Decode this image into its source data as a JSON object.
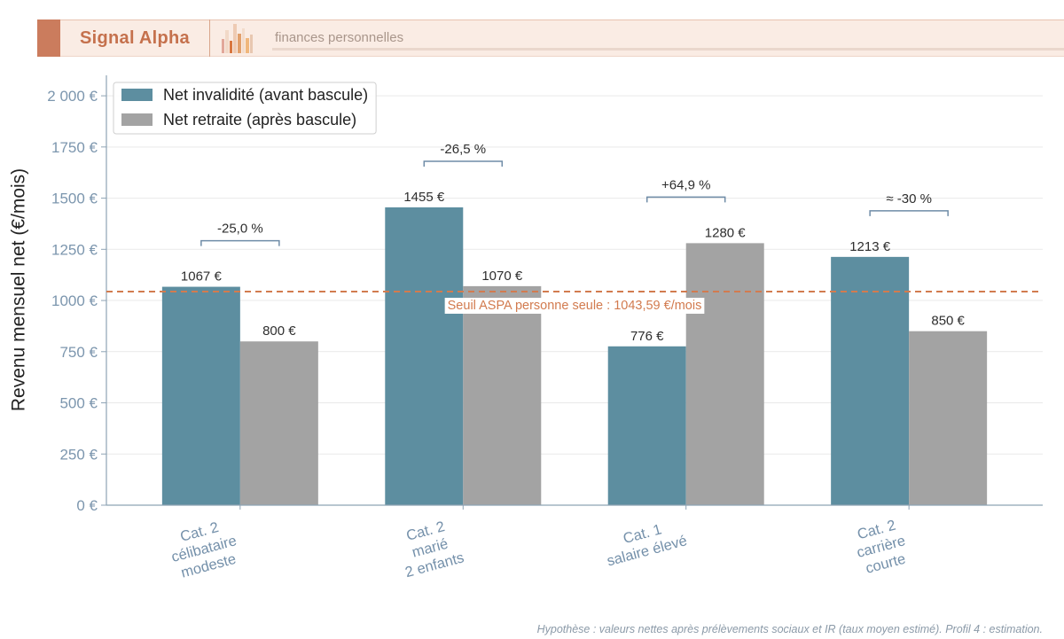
{
  "header": {
    "brand": "Signal Alpha",
    "tagline": "finances personnelles",
    "logo_icon": "bar-chart-logo-icon"
  },
  "colors": {
    "accent": "#cb7c5d",
    "brand_text": "#c5714d",
    "header_band": "#faece4",
    "axis": "#8ea3b4",
    "tick_text": "#7c96ae"
  },
  "chart_data": {
    "type": "bar",
    "title": "",
    "xlabel": "",
    "ylabel": "Revenu mensuel net (€/mois)",
    "ylim": [
      0,
      2100
    ],
    "yticks": [
      0,
      250,
      500,
      750,
      1000,
      1250,
      1500,
      1750,
      2000
    ],
    "ytick_labels": [
      "0 €",
      "250 €",
      "500 €",
      "750 €",
      "1000 €",
      "1250 €",
      "1500 €",
      "1750 €",
      "2 000 €"
    ],
    "grid": true,
    "legend_position": "top-left",
    "categories": [
      [
        "Cat. 2",
        "célibataire",
        "modeste"
      ],
      [
        "Cat. 2",
        "marié",
        "2 enfants"
      ],
      [
        "Cat. 1",
        "salaire élevé"
      ],
      [
        "Cat. 2",
        "carrière",
        "courte"
      ]
    ],
    "series": [
      {
        "name": "Net invalidité (avant bascule)",
        "color": "#5d8ea0",
        "values": [
          1067,
          1455,
          776,
          1213
        ],
        "labels": [
          "1067 €",
          "1455 €",
          "776 €",
          "1213 €"
        ]
      },
      {
        "name": "Net retraite (après bascule)",
        "color": "#a3a3a3",
        "values": [
          800,
          1070,
          1280,
          850
        ],
        "labels": [
          "800 €",
          "1070 €",
          "1280 €",
          "850 €"
        ]
      }
    ],
    "change_labels": [
      "-25,0 %",
      "-26,5 %",
      "+64,9 %",
      "≈ -30 %"
    ],
    "reference_line": {
      "value": 1043.59,
      "label": "Seuil ASPA personne seule : 1043,59 €/mois",
      "color": "#d27b4f",
      "style": "dashed"
    }
  },
  "footnote": "Hypothèse : valeurs nettes après prélèvements sociaux et IR (taux moyen estimé). Profil 4 : estimation."
}
